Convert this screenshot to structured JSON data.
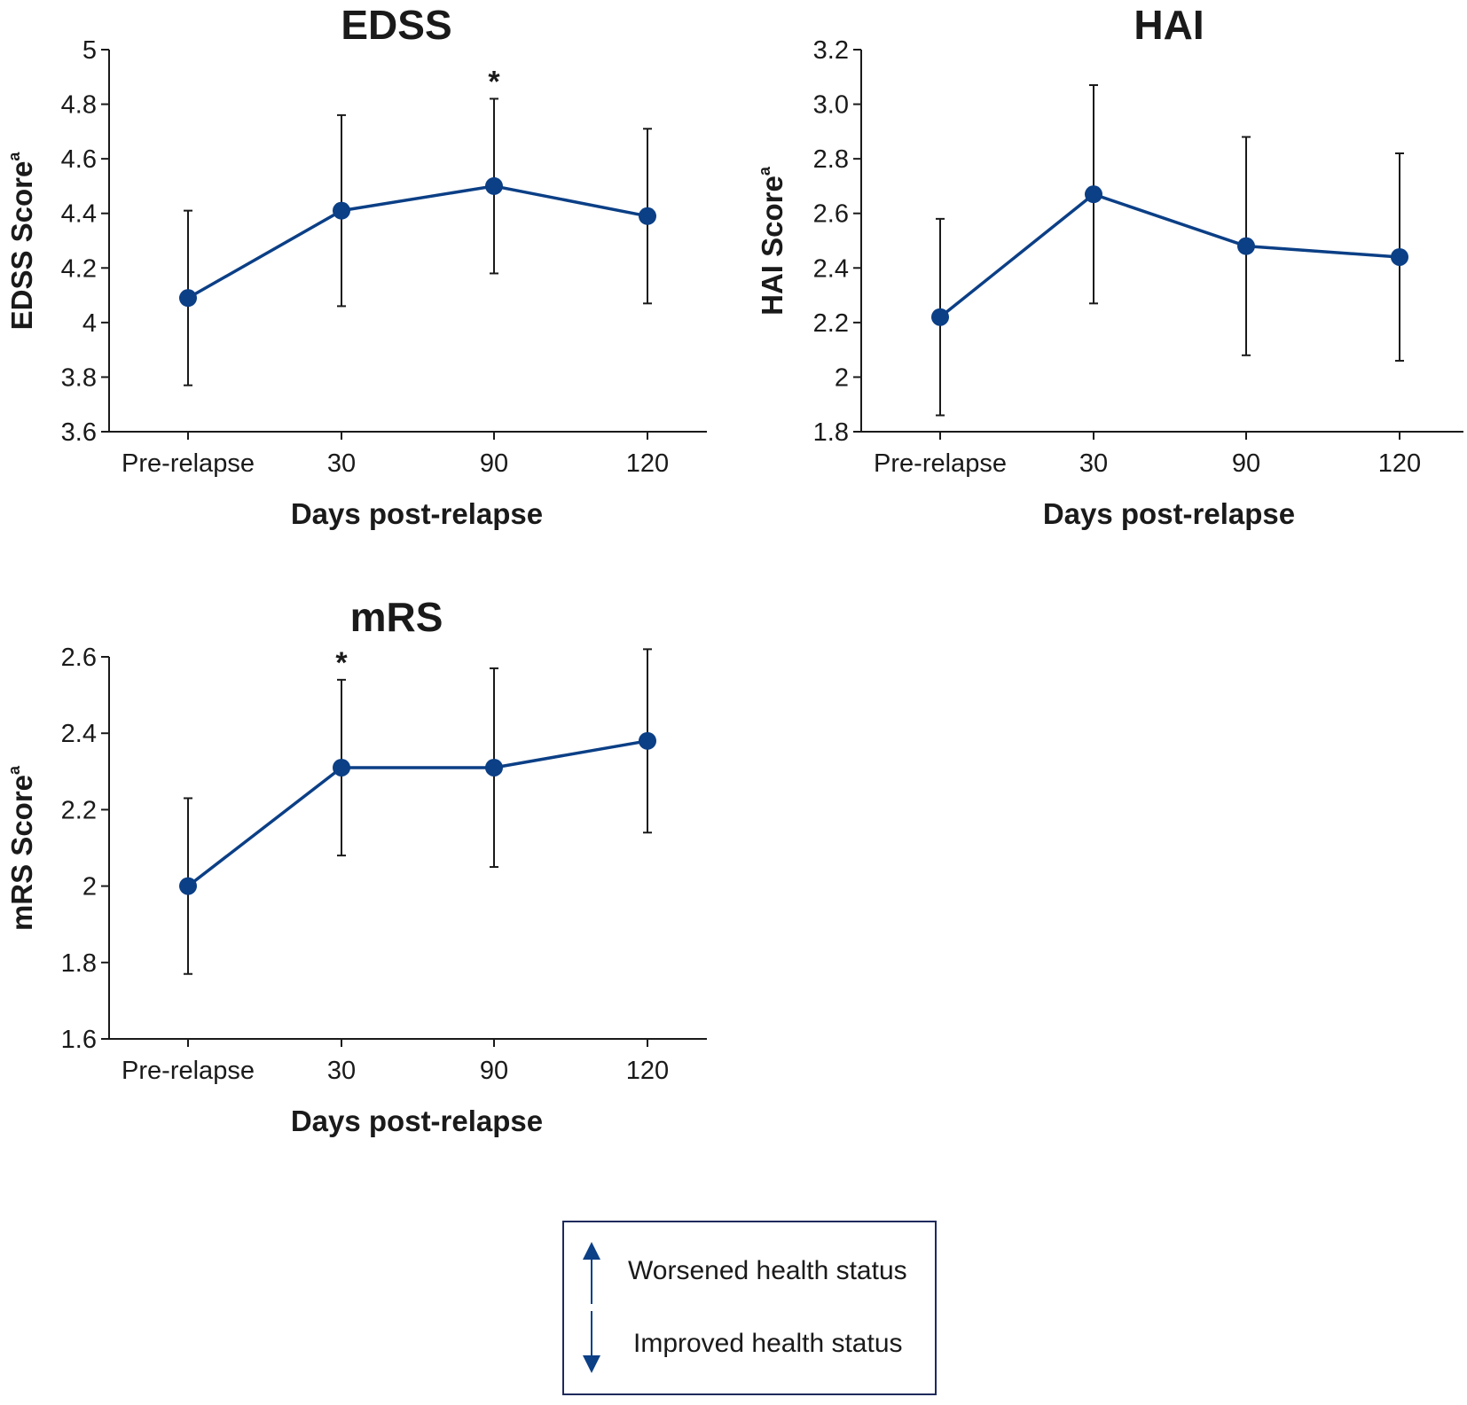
{
  "colors": {
    "series": "#0b3f86",
    "axis": "#1a1a1a"
  },
  "chart_data": [
    {
      "id": "edss",
      "type": "line",
      "title": "EDSS",
      "ylabel": "EDSS Score",
      "ylabel_superscript": "a",
      "xlabel": "Days post-relapse",
      "categories": [
        "Pre-relapse",
        "30",
        "90",
        "120"
      ],
      "values": [
        4.09,
        4.41,
        4.5,
        4.39
      ],
      "error_low": [
        3.77,
        4.06,
        4.18,
        4.07
      ],
      "error_high": [
        4.41,
        4.76,
        4.82,
        4.71
      ],
      "significance": [
        "",
        "",
        "*",
        ""
      ],
      "ylim": [
        3.6,
        5.0
      ],
      "yticks": [
        "3.6",
        "3.8",
        "4",
        "4.2",
        "4.4",
        "4.6",
        "4.8",
        "5"
      ],
      "grid": false
    },
    {
      "id": "hai",
      "type": "line",
      "title": "HAI",
      "ylabel": "HAI Score",
      "ylabel_superscript": "a",
      "xlabel": "Days post-relapse",
      "categories": [
        "Pre-relapse",
        "30",
        "90",
        "120"
      ],
      "values": [
        2.22,
        2.67,
        2.48,
        2.44
      ],
      "error_low": [
        1.86,
        2.27,
        2.08,
        2.06
      ],
      "error_high": [
        2.58,
        3.07,
        2.88,
        2.82
      ],
      "significance": [
        "",
        "",
        "",
        ""
      ],
      "ylim": [
        1.8,
        3.2
      ],
      "yticks": [
        "1.8",
        "2",
        "2.2",
        "2.4",
        "2.6",
        "2.8",
        "3.0",
        "3.2"
      ],
      "grid": false
    },
    {
      "id": "mrs",
      "type": "line",
      "title": "mRS",
      "ylabel": "mRS Score",
      "ylabel_superscript": "a",
      "xlabel": "Days post-relapse",
      "categories": [
        "Pre-relapse",
        "30",
        "90",
        "120"
      ],
      "values": [
        2.0,
        2.31,
        2.31,
        2.38
      ],
      "error_low": [
        1.77,
        2.08,
        2.05,
        2.14
      ],
      "error_high": [
        2.23,
        2.54,
        2.57,
        2.62
      ],
      "significance": [
        "",
        "*",
        "",
        ""
      ],
      "ylim": [
        1.6,
        2.6
      ],
      "yticks": [
        "1.6",
        "1.8",
        "2",
        "2.2",
        "2.4",
        "2.6"
      ],
      "grid": false
    }
  ],
  "legend": {
    "items": [
      {
        "icon": "arrow-up-icon",
        "label": "Worsened health status"
      },
      {
        "icon": "arrow-down-icon",
        "label": "Improved health status"
      }
    ]
  }
}
